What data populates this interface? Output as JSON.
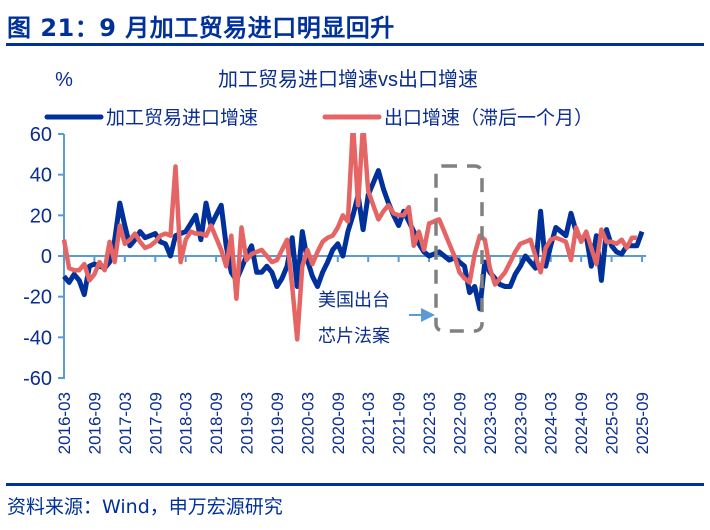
{
  "header": {
    "figure_title": "图 21：9 月加工贸易进口明显回升"
  },
  "footer": {
    "source": "资料来源：Wind，申万宏源研究"
  },
  "colors": {
    "series_blue": "#00309a",
    "series_red": "#e56464",
    "axis": "#5b9bd5",
    "annotation_box": "#808080",
    "arrow": "#5b9bd5"
  },
  "chart_data": {
    "type": "line",
    "title": "加工贸易进口增速vs出口增速",
    "ylabel": "%",
    "xlabel": "",
    "ylim": [
      -60,
      60
    ],
    "yticks": [
      60,
      40,
      20,
      0,
      -20,
      -40,
      -60
    ],
    "x_start": "2016-03",
    "x_end": "2025-09",
    "xtick_labels": [
      "2016-03",
      "2016-09",
      "2017-03",
      "2017-09",
      "2018-03",
      "2018-09",
      "2019-03",
      "2019-09",
      "2020-03",
      "2020-09",
      "2021-03",
      "2021-09",
      "2022-03",
      "2022-09",
      "2023-03",
      "2023-09",
      "2024-03",
      "2024-09",
      "2025-03",
      "2025-09"
    ],
    "legend_position": "top",
    "series": [
      {
        "name": "加工贸易进口增速",
        "color": "#00309a",
        "values": [
          -10,
          -13,
          -9,
          -12,
          -19,
          -5,
          -4,
          -5,
          -6,
          -3,
          8,
          26,
          15,
          5,
          8,
          12,
          9,
          10,
          11,
          7,
          6,
          0,
          10,
          11,
          12,
          16,
          20,
          8,
          26,
          15,
          20,
          25,
          5,
          -8,
          -12,
          -6,
          0,
          5,
          -8,
          -8,
          -5,
          -8,
          -15,
          -11,
          -5,
          9,
          -15,
          12,
          -2,
          -10,
          -15,
          -8,
          -3,
          3,
          6,
          0,
          12,
          20,
          30,
          13,
          30,
          36,
          42,
          33,
          26,
          20,
          15,
          22,
          17,
          12,
          6,
          2,
          0,
          1,
          2,
          0,
          -2,
          -1,
          -3,
          -5,
          -18,
          -15,
          -26,
          -3,
          -8,
          -11,
          -14,
          -15,
          -15,
          -9,
          -5,
          0,
          -3,
          -6,
          22,
          -5,
          5,
          14,
          12,
          10,
          21,
          12,
          8,
          10,
          -5,
          10,
          -12,
          13,
          5,
          2,
          1,
          5,
          5,
          5,
          12
        ]
      },
      {
        "name": "出口增速（滞后一个月）",
        "color": "#e56464",
        "values": [
          8,
          -6,
          -7,
          -7,
          -4,
          -12,
          -9,
          -3,
          -7,
          7,
          -3,
          15,
          6,
          8,
          11,
          7,
          4,
          5,
          7,
          10,
          11,
          10,
          44,
          -3,
          8,
          12,
          11,
          11,
          10,
          15,
          9,
          3,
          -5,
          10,
          -21,
          14,
          -2,
          1,
          2,
          3,
          0,
          -3,
          -2,
          3,
          8,
          -15,
          -41,
          -5,
          3,
          -4,
          2,
          7,
          9,
          10,
          14,
          20,
          17,
          65,
          25,
          65,
          32,
          25,
          18,
          22,
          25,
          21,
          20,
          20,
          24,
          5,
          12,
          3,
          16,
          17,
          18,
          12,
          6,
          0,
          -8,
          -11,
          -13,
          1,
          10,
          8,
          -6,
          -14,
          -11,
          -8,
          -3,
          2,
          6,
          7,
          8,
          0,
          -8,
          4,
          8,
          9,
          8,
          7,
          -2,
          14,
          7,
          12,
          4,
          -4,
          13,
          7,
          7,
          6,
          8,
          4,
          9,
          9
        ]
      }
    ],
    "annotations": [
      {
        "text_line1": "美国出台",
        "text_line2": "芯片法案",
        "highlight_from": "2022-03",
        "highlight_to": "2022-12"
      }
    ]
  }
}
